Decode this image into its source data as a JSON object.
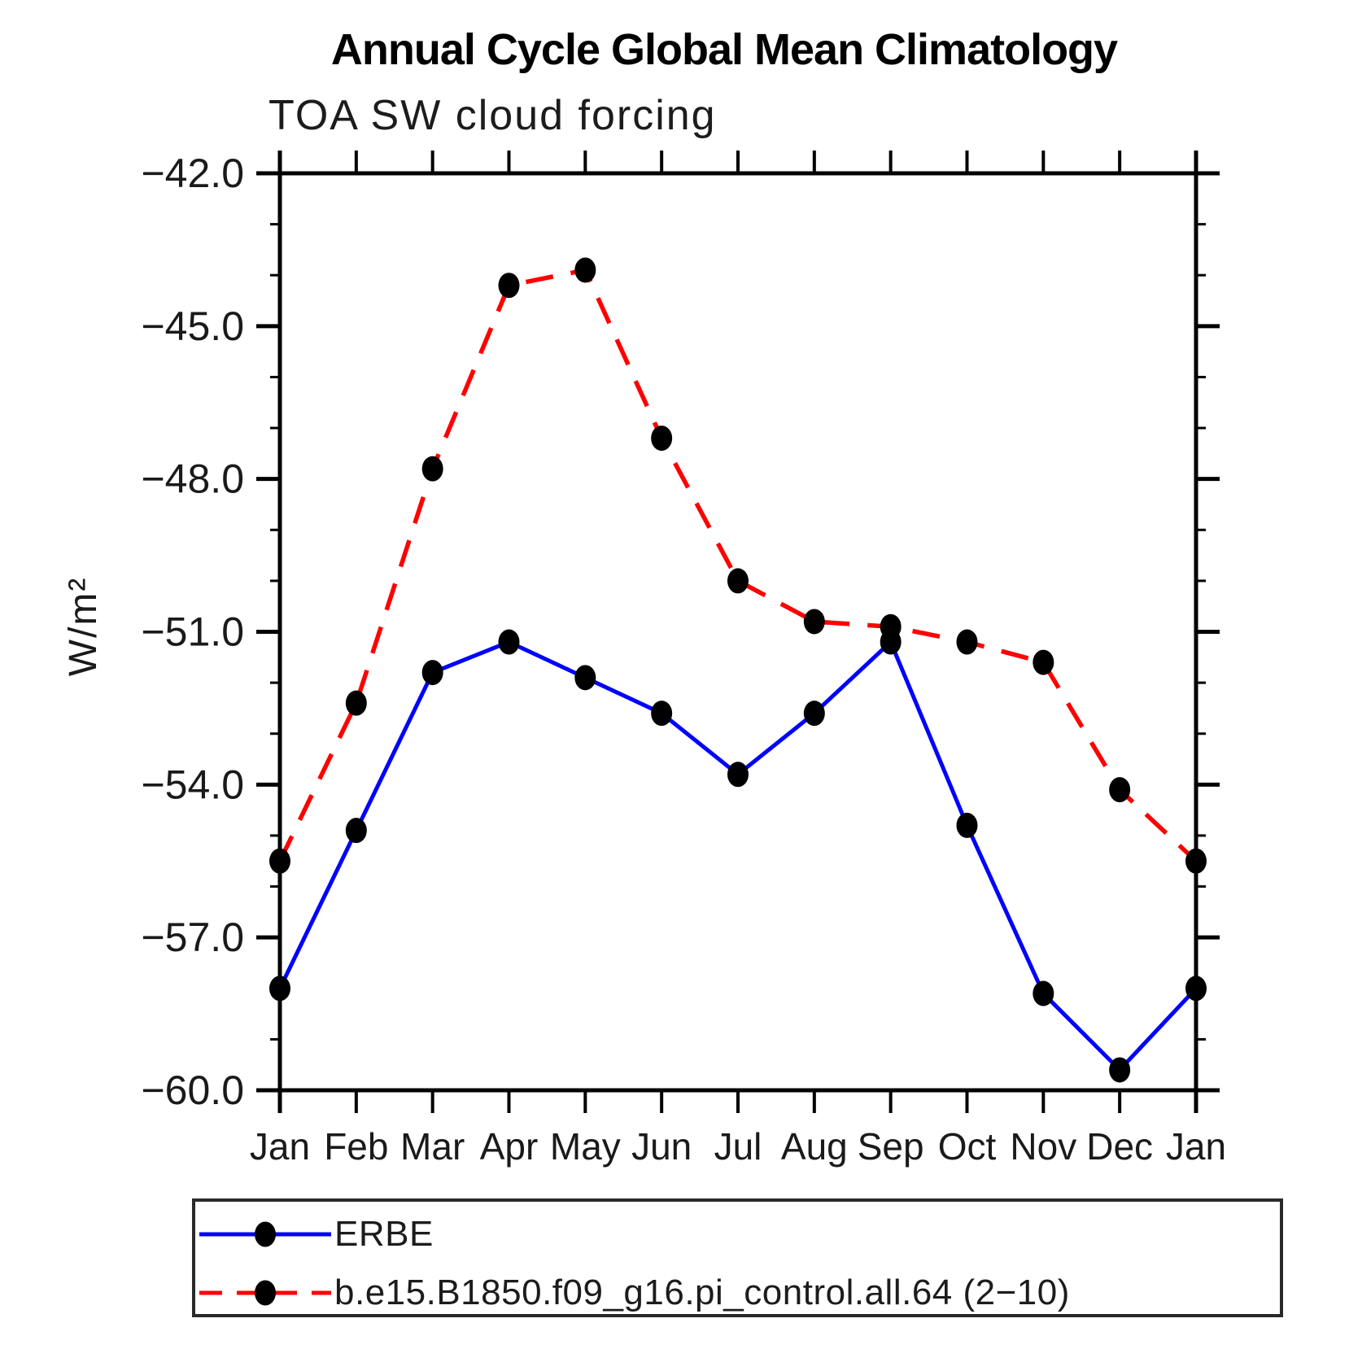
{
  "header": {
    "title": "Annual Cycle Global Mean Climatology",
    "subtitle": "TOA SW cloud forcing"
  },
  "chart_data": {
    "type": "line",
    "title": "Annual Cycle Global Mean Climatology",
    "subtitle": "TOA SW cloud forcing",
    "ylabel": "W/m²",
    "xlabel": "",
    "categories": [
      "Jan",
      "Feb",
      "Mar",
      "Apr",
      "May",
      "Jun",
      "Jul",
      "Aug",
      "Sep",
      "Oct",
      "Nov",
      "Dec",
      "Jan"
    ],
    "ylim": [
      -60.0,
      -42.0
    ],
    "grid": false,
    "legend_position": "bottom",
    "y_ticks": {
      "major_values": [
        -42.0,
        -45.0,
        -48.0,
        -51.0,
        -54.0,
        -57.0,
        -60.0
      ],
      "major_labels": [
        "−42.0",
        "−45.0",
        "−48.0",
        "−51.0",
        "−54.0",
        "−57.0",
        "−60.0"
      ],
      "minor_step": 1.0
    },
    "marker": "filled-circle",
    "marker_color": "#000000",
    "axis_color": "#000000",
    "series": [
      {
        "name": "ERBE",
        "color": "#0000ff",
        "line_style": "solid",
        "values": [
          -58.0,
          -54.9,
          -51.8,
          -51.2,
          -51.9,
          -52.6,
          -53.8,
          -52.6,
          -51.2,
          -54.8,
          -58.1,
          -59.6,
          -58.0
        ]
      },
      {
        "name": "b.e15.B1850.f09_g16.pi_control.all.64 (2−10)",
        "color": "#ff0000",
        "line_style": "dashed",
        "values": [
          -55.5,
          -52.4,
          -47.8,
          -44.2,
          -43.9,
          -47.2,
          -50.0,
          -50.8,
          -50.9,
          -51.2,
          -51.6,
          -54.1,
          -55.5
        ]
      }
    ]
  }
}
